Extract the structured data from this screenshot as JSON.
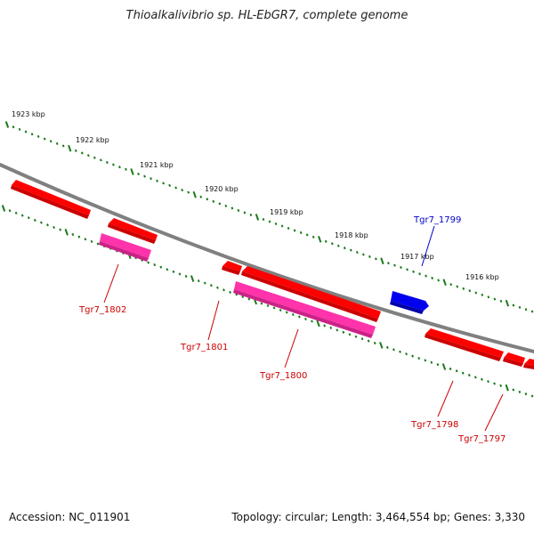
{
  "title": "Thioalkalivibrio sp. HL-EbGR7, complete genome",
  "footer": {
    "accession": "Accession: NC_011901",
    "topology": "Topology: circular; Length: 3,464,554 bp; Genes: 3,330"
  },
  "ruler_labels": [
    "1923 kbp",
    "1922 kbp",
    "1921 kbp",
    "1920 kbp",
    "1919 kbp",
    "1918 kbp",
    "1917 kbp",
    "1916 kbp"
  ],
  "gene_labels": [
    {
      "text": "Tgr7_1799",
      "color": "#0000cc"
    },
    {
      "text": "Tgr7_1802",
      "color": "#cc0000"
    },
    {
      "text": "Tgr7_1801",
      "color": "#cc0000"
    },
    {
      "text": "Tgr7_1800",
      "color": "#cc0000"
    },
    {
      "text": "Tgr7_1798",
      "color": "#cc0000"
    },
    {
      "text": "Tgr7_1797",
      "color": "#cc0000"
    }
  ],
  "colors": {
    "backbone": "#808080",
    "tick_green": "#1a7a1a",
    "gene_red": "#ff0000",
    "gene_pink": "#ff33aa",
    "gene_blue": "#0000ee"
  }
}
